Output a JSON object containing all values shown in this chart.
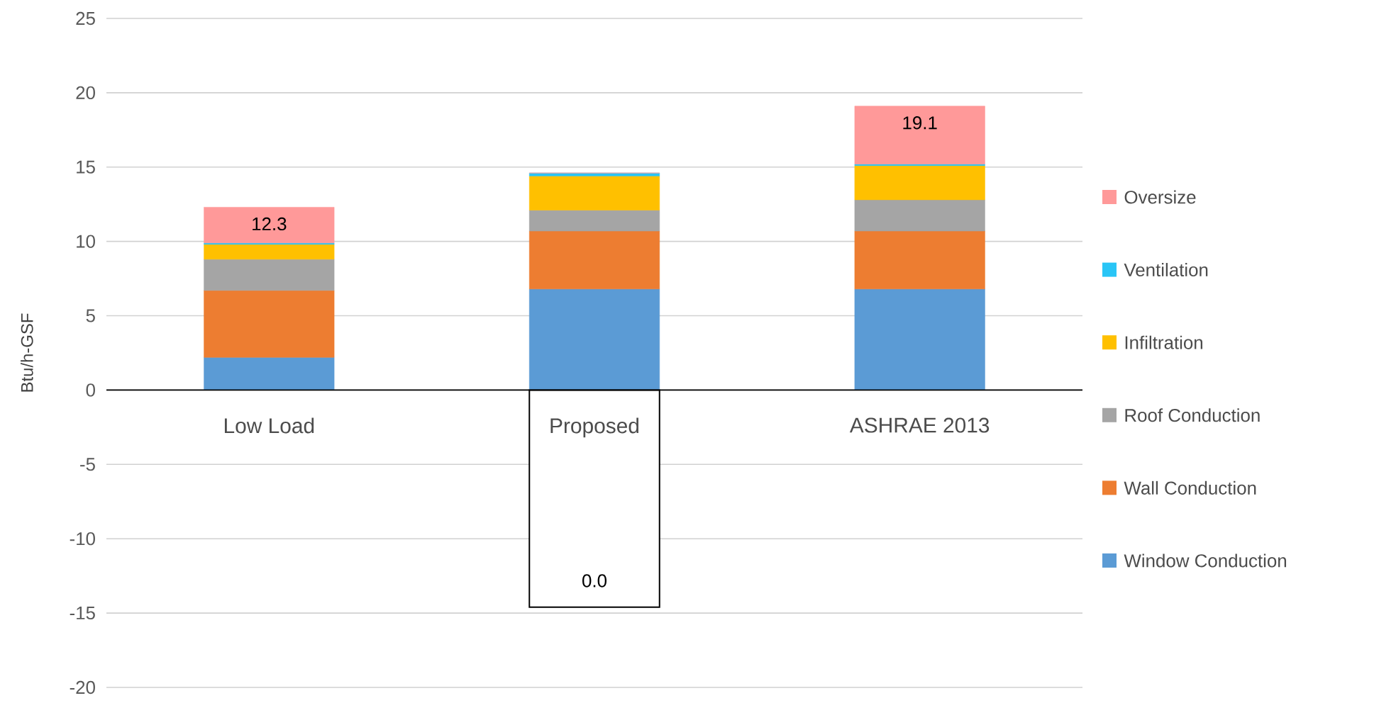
{
  "chart_data": {
    "type": "bar",
    "stacked": true,
    "ylabel": "Btu/h-GSF",
    "categories": [
      "Low Load",
      "Proposed",
      "ASHRAE 2013"
    ],
    "series": [
      {
        "name": "Window Conduction",
        "color": "#5b9bd5",
        "values": [
          2.2,
          6.8,
          6.8
        ]
      },
      {
        "name": "Wall Conduction",
        "color": "#ed7d31",
        "values": [
          4.5,
          3.9,
          3.9
        ]
      },
      {
        "name": "Roof Conduction",
        "color": "#a5a5a5",
        "values": [
          2.1,
          1.4,
          2.1
        ]
      },
      {
        "name": "Infiltration",
        "color": "#ffc000",
        "values": [
          1.0,
          2.3,
          2.3
        ]
      },
      {
        "name": "Ventilation",
        "color": "#29c5f6",
        "values": [
          0.1,
          0.2,
          0.1
        ]
      },
      {
        "name": "Oversize",
        "color": "#ff9999",
        "values": [
          2.4,
          0.0,
          3.9
        ]
      },
      {
        "color": "#ffffff",
        "values": [
          null,
          -14.6,
          null
        ]
      }
    ],
    "totals": [
      "12.3",
      null,
      "19.1"
    ],
    "annotations": [
      "0.0"
    ],
    "ylim": [
      -20,
      25
    ],
    "yticks": [
      -20,
      -15,
      -10,
      -5,
      0,
      5,
      10,
      15,
      20,
      25
    ],
    "grid": "y",
    "legend": "right"
  }
}
